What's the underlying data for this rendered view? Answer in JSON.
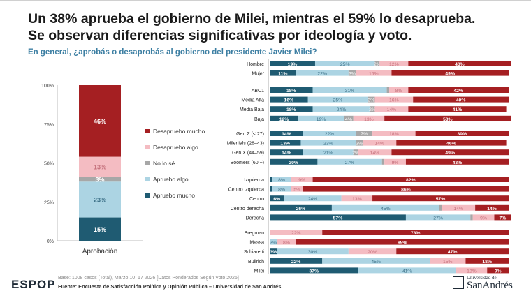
{
  "header": {
    "title_line1": "Un 38% aprueba el gobierno de Milei, mientras el 59% lo desaprueba.",
    "title_line2": "Se observan diferencias significativas por ideología y voto.",
    "question": "En general, ¿aprobás o desaprobás al gobierno del presidente Javier Milei?"
  },
  "footer": {
    "base": "Base: 1008 casos (Total), Marzo 10–17 2026 [Datos Ponderados Según Voto 2025]",
    "source": "Fuente: Encuesta de Satisfacción Política y Opinión Pública – Universidad de San Andrés"
  },
  "logos": {
    "espop": "ESPOP",
    "sa_small": "Universidad de",
    "sa_big": "SanAndrés"
  },
  "colors": {
    "desapruebo_mucho": "#a51f22",
    "desapruebo_algo": "#f4bcc2",
    "no_lo_se": "#a7a7a7",
    "apruebo_algo": "#acd4e3",
    "apruebo_mucho": "#1f5b72"
  },
  "chart_data": [
    {
      "type": "bar",
      "stacked": true,
      "categories": [
        "Aprobación"
      ],
      "ylim": [
        0,
        100
      ],
      "yticks": [
        "0%",
        "25%",
        "50%",
        "75%",
        "100%"
      ],
      "legend_position": "right",
      "series": [
        {
          "name": "Apruebo mucho",
          "values": [
            15
          ]
        },
        {
          "name": "Apruebo algo",
          "values": [
            23
          ]
        },
        {
          "name": "No lo sé",
          "values": [
            3
          ]
        },
        {
          "name": "Desapruebo algo",
          "values": [
            13
          ]
        },
        {
          "name": "Desapruebo mucho",
          "values": [
            46
          ]
        }
      ]
    },
    {
      "type": "bar",
      "orientation": "horizontal",
      "stacked": true,
      "xlim": [
        0,
        100
      ],
      "groups": [
        {
          "rows": [
            {
              "label": "Hombre",
              "values": [
                19,
                25,
                2,
                12,
                43
              ]
            },
            {
              "label": "Mujer",
              "values": [
                11,
                22,
                3,
                15,
                49
              ]
            }
          ]
        },
        {
          "rows": [
            {
              "label": "ABC1",
              "values": [
                18,
                31,
                1,
                8,
                42
              ]
            },
            {
              "label": "Media Alta",
              "values": [
                16,
                25,
                3,
                16,
                40
              ]
            },
            {
              "label": "Media Baja",
              "values": [
                18,
                24,
                2,
                14,
                41
              ]
            },
            {
              "label": "Baja",
              "values": [
                12,
                19,
                4,
                13,
                53
              ]
            }
          ]
        },
        {
          "rows": [
            {
              "label": "Gen Z (< 27)",
              "values": [
                14,
                22,
                7,
                18,
                39
              ]
            },
            {
              "label": "Milenials (28–43)",
              "values": [
                13,
                23,
                3,
                14,
                46
              ]
            },
            {
              "label": "Gen X (44–59)",
              "values": [
                14,
                21,
                2,
                14,
                49
              ]
            },
            {
              "label": "Boomers (60 +)",
              "values": [
                20,
                27,
                1,
                9,
                43
              ]
            }
          ]
        },
        {
          "rows": [
            {
              "label": "Izquierda",
              "values": [
                1,
                8,
                0,
                9,
                82
              ]
            },
            {
              "label": "Centro izquierda",
              "values": [
                1,
                8,
                0,
                5,
                86
              ]
            },
            {
              "label": "Centro",
              "values": [
                6,
                24,
                0,
                13,
                57
              ]
            },
            {
              "label": "Centro derecha",
              "values": [
                26,
                45,
                1,
                14,
                14
              ]
            },
            {
              "label": "Derecha",
              "values": [
                57,
                27,
                1,
                9,
                7
              ]
            }
          ]
        },
        {
          "rows": [
            {
              "label": "Bregman",
              "values": [
                0,
                0,
                0,
                22,
                78
              ]
            },
            {
              "label": "Massa",
              "values": [
                0,
                3,
                0,
                8,
                89
              ]
            },
            {
              "label": "Schiaretti",
              "values": [
                3,
                30,
                0,
                20,
                47
              ]
            },
            {
              "label": "Bullrich",
              "values": [
                22,
                45,
                0,
                15,
                18
              ]
            },
            {
              "label": "Milei",
              "values": [
                37,
                41,
                0,
                13,
                9
              ]
            }
          ]
        }
      ]
    }
  ]
}
